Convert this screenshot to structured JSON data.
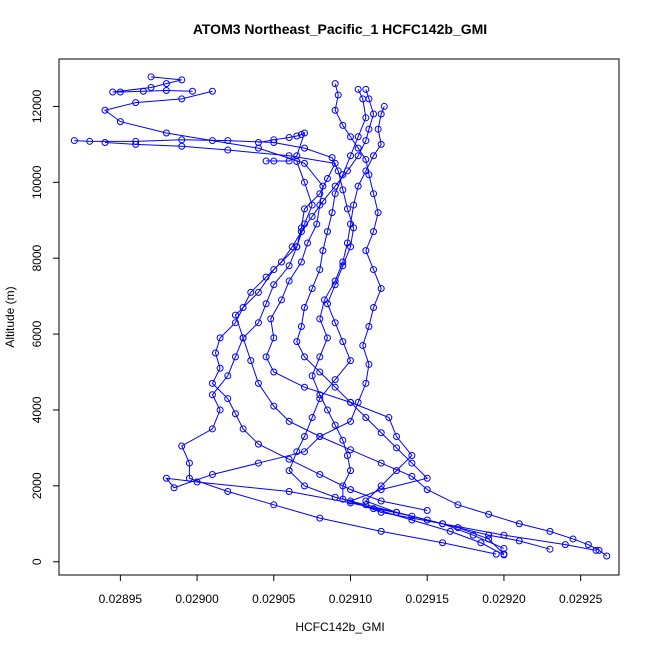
{
  "chart_data": {
    "type": "line",
    "title": "ATOM3 Northeast_Pacific_1 HCFC142b_GMI",
    "xlabel": "HCFC142b_GMI",
    "ylabel": "Altitude (m)",
    "xlim": [
      0.02891,
      0.029275
    ],
    "ylim": [
      -350,
      13250
    ],
    "xticks": [
      0.02895,
      0.029,
      0.02905,
      0.0291,
      0.02915,
      0.0292,
      0.02925
    ],
    "xtick_labels": [
      "0.02895",
      "0.02900",
      "0.02905",
      "0.02910",
      "0.02915",
      "0.02920",
      "0.02925"
    ],
    "yticks": [
      0,
      2000,
      4000,
      6000,
      8000,
      10000,
      12000
    ],
    "ytick_labels": [
      "0",
      "2000",
      "4000",
      "6000",
      "8000",
      "10000",
      "12000"
    ],
    "grid": false,
    "marker": "open-circle",
    "series_color": "#0000ff",
    "series": [
      {
        "points": [
          [
            0.029267,
            150
          ],
          [
            0.029262,
            300
          ],
          [
            0.029255,
            450
          ],
          [
            0.029245,
            600
          ],
          [
            0.02923,
            800
          ],
          [
            0.02921,
            1000
          ],
          [
            0.02919,
            1250
          ],
          [
            0.02917,
            1500
          ],
          [
            0.02915,
            1900
          ],
          [
            0.02914,
            2250
          ],
          [
            0.02912,
            2600
          ],
          [
            0.0291,
            2950
          ],
          [
            0.02908,
            3300
          ],
          [
            0.02906,
            3700
          ],
          [
            0.02905,
            4100
          ],
          [
            0.02904,
            4700
          ],
          [
            0.029035,
            5300
          ],
          [
            0.02903,
            5900
          ],
          [
            0.029025,
            6500
          ],
          [
            0.02904,
            7100
          ],
          [
            0.02905,
            7700
          ],
          [
            0.029065,
            8300
          ],
          [
            0.02907,
            8900
          ],
          [
            0.029075,
            9400
          ],
          [
            0.02907,
            10000
          ],
          [
            0.029065,
            10550
          ]
        ]
      },
      {
        "points": [
          [
            0.02923,
            330
          ],
          [
            0.02921,
            550
          ],
          [
            0.02919,
            700
          ],
          [
            0.02917,
            900
          ],
          [
            0.02915,
            1100
          ],
          [
            0.02913,
            1300
          ],
          [
            0.02911,
            1500
          ],
          [
            0.02909,
            1700
          ],
          [
            0.02907,
            2000
          ],
          [
            0.02906,
            2400
          ],
          [
            0.029065,
            2900
          ],
          [
            0.02907,
            3300
          ],
          [
            0.029075,
            3800
          ],
          [
            0.02908,
            4300
          ],
          [
            0.02909,
            4800
          ],
          [
            0.0291,
            5300
          ],
          [
            0.029095,
            5800
          ],
          [
            0.02909,
            6300
          ],
          [
            0.029085,
            6800
          ],
          [
            0.02909,
            7300
          ],
          [
            0.029095,
            7800
          ],
          [
            0.0291,
            8300
          ],
          [
            0.029102,
            8800
          ],
          [
            0.029098,
            9300
          ],
          [
            0.029095,
            9800
          ],
          [
            0.029092,
            10300
          ],
          [
            0.029088,
            10650
          ],
          [
            0.02907,
            10900
          ],
          [
            0.02905,
            11050
          ],
          [
            0.02902,
            11100
          ],
          [
            0.02899,
            11120
          ],
          [
            0.02896,
            11080
          ],
          [
            0.02893,
            11080
          ],
          [
            0.02892,
            11100
          ]
        ]
      },
      {
        "points": [
          [
            0.0292,
            200
          ],
          [
            0.02919,
            600
          ],
          [
            0.02917,
            900
          ],
          [
            0.02914,
            1200
          ],
          [
            0.0291,
            1550
          ],
          [
            0.02906,
            1850
          ],
          [
            0.029,
            2100
          ],
          [
            0.02898,
            2200
          ],
          [
            0.028985,
            1950
          ],
          [
            0.02901,
            2300
          ],
          [
            0.02904,
            2600
          ],
          [
            0.02907,
            2900
          ],
          [
            0.02908,
            3300
          ],
          [
            0.0291,
            3700
          ],
          [
            0.029105,
            4200
          ],
          [
            0.02911,
            4700
          ],
          [
            0.029112,
            5200
          ],
          [
            0.029108,
            5700
          ],
          [
            0.029112,
            6200
          ],
          [
            0.029115,
            6700
          ],
          [
            0.02912,
            7200
          ],
          [
            0.029115,
            7700
          ],
          [
            0.02911,
            8200
          ],
          [
            0.029115,
            8700
          ],
          [
            0.029118,
            9200
          ],
          [
            0.029115,
            9700
          ],
          [
            0.029112,
            10200
          ],
          [
            0.02911,
            10600
          ],
          [
            0.029105,
            10900
          ],
          [
            0.0291,
            11200
          ],
          [
            0.029095,
            11500
          ],
          [
            0.02909,
            11900
          ],
          [
            0.029092,
            12300
          ],
          [
            0.02909,
            12600
          ]
        ]
      },
      {
        "points": [
          [
            0.0292,
            180
          ],
          [
            0.029185,
            500
          ],
          [
            0.029165,
            800
          ],
          [
            0.02914,
            1100
          ],
          [
            0.029115,
            1400
          ],
          [
            0.029095,
            1650
          ],
          [
            0.029095,
            2000
          ],
          [
            0.0291,
            2400
          ],
          [
            0.029098,
            2800
          ],
          [
            0.029095,
            3200
          ],
          [
            0.02909,
            3600
          ],
          [
            0.029085,
            4000
          ],
          [
            0.02908,
            4400
          ],
          [
            0.029075,
            4900
          ],
          [
            0.02908,
            5400
          ],
          [
            0.029085,
            5900
          ],
          [
            0.02908,
            6400
          ],
          [
            0.029083,
            6900
          ],
          [
            0.02909,
            7400
          ],
          [
            0.029095,
            7900
          ],
          [
            0.029098,
            8400
          ],
          [
            0.0291,
            8900
          ],
          [
            0.029102,
            9400
          ],
          [
            0.029105,
            9900
          ],
          [
            0.02911,
            10300
          ],
          [
            0.029115,
            10700
          ],
          [
            0.02912,
            11000
          ],
          [
            0.029118,
            11400
          ],
          [
            0.02912,
            11800
          ],
          [
            0.029122,
            12000
          ]
        ]
      },
      {
        "points": [
          [
            0.029195,
            200
          ],
          [
            0.02916,
            500
          ],
          [
            0.02912,
            800
          ],
          [
            0.02908,
            1150
          ],
          [
            0.02905,
            1500
          ],
          [
            0.02902,
            1850
          ],
          [
            0.028995,
            2200
          ],
          [
            0.028995,
            2600
          ],
          [
            0.02899,
            3050
          ],
          [
            0.02901,
            3500
          ],
          [
            0.029015,
            4000
          ],
          [
            0.02901,
            4400
          ],
          [
            0.02902,
            4900
          ],
          [
            0.029025,
            5400
          ],
          [
            0.02903,
            5900
          ],
          [
            0.02904,
            6300
          ],
          [
            0.029045,
            6800
          ],
          [
            0.02905,
            7300
          ],
          [
            0.02906,
            7800
          ],
          [
            0.029065,
            8300
          ],
          [
            0.029068,
            8800
          ],
          [
            0.02907,
            9300
          ],
          [
            0.02908,
            9700
          ],
          [
            0.029085,
            10100
          ],
          [
            0.02909,
            10500
          ],
          [
            0.02906,
            10700
          ],
          [
            0.02902,
            10850
          ],
          [
            0.02899,
            10950
          ],
          [
            0.02896,
            11000
          ],
          [
            0.02894,
            11050
          ]
        ]
      },
      {
        "points": [
          [
            0.02926,
            300
          ],
          [
            0.02924,
            450
          ],
          [
            0.0292,
            700
          ],
          [
            0.02916,
            1000
          ],
          [
            0.02912,
            1300
          ],
          [
            0.0291,
            1600
          ],
          [
            0.02912,
            1900
          ],
          [
            0.02915,
            2200
          ],
          [
            0.02914,
            2600
          ],
          [
            0.02913,
            3000
          ],
          [
            0.02912,
            3400
          ],
          [
            0.02911,
            3800
          ],
          [
            0.0291,
            4200
          ],
          [
            0.02909,
            4600
          ],
          [
            0.02908,
            5000
          ],
          [
            0.02907,
            5400
          ],
          [
            0.029065,
            5800
          ],
          [
            0.029068,
            6200
          ],
          [
            0.02907,
            6700
          ],
          [
            0.029075,
            7200
          ],
          [
            0.02908,
            7700
          ],
          [
            0.029082,
            8200
          ],
          [
            0.029085,
            8700
          ],
          [
            0.029088,
            9200
          ],
          [
            0.02909,
            9700
          ],
          [
            0.029095,
            10200
          ],
          [
            0.0291,
            10700
          ],
          [
            0.029105,
            11200
          ],
          [
            0.02911,
            11700
          ],
          [
            0.029108,
            12200
          ],
          [
            0.029105,
            12450
          ]
        ]
      },
      {
        "points": [
          [
            0.0292,
            350
          ],
          [
            0.02918,
            700
          ],
          [
            0.02916,
            1000
          ],
          [
            0.02913,
            1300
          ],
          [
            0.02911,
            1600
          ],
          [
            0.02912,
            2000
          ],
          [
            0.02913,
            2400
          ],
          [
            0.02914,
            2800
          ],
          [
            0.02913,
            3300
          ],
          [
            0.029125,
            3800
          ],
          [
            0.0291,
            4200
          ],
          [
            0.02907,
            4600
          ],
          [
            0.02905,
            5000
          ],
          [
            0.029045,
            5400
          ],
          [
            0.02905,
            5900
          ],
          [
            0.029048,
            6400
          ],
          [
            0.029055,
            6900
          ],
          [
            0.02906,
            7400
          ],
          [
            0.029068,
            7900
          ],
          [
            0.029072,
            8400
          ],
          [
            0.029078,
            8900
          ],
          [
            0.02908,
            9400
          ],
          [
            0.029082,
            9900
          ],
          [
            0.02907,
            10500
          ],
          [
            0.02904,
            10900
          ],
          [
            0.02901,
            11100
          ],
          [
            0.02898,
            11300
          ],
          [
            0.02895,
            11600
          ],
          [
            0.02894,
            11900
          ],
          [
            0.02896,
            12100
          ],
          [
            0.02899,
            12200
          ],
          [
            0.02901,
            12400
          ]
        ]
      },
      {
        "points": [
          [
            0.02915,
            1350
          ],
          [
            0.02912,
            1600
          ],
          [
            0.0291,
            1900
          ],
          [
            0.02908,
            2300
          ],
          [
            0.02906,
            2700
          ],
          [
            0.02904,
            3100
          ],
          [
            0.02903,
            3500
          ],
          [
            0.029025,
            3900
          ],
          [
            0.02902,
            4300
          ],
          [
            0.02901,
            4700
          ],
          [
            0.029015,
            5100
          ],
          [
            0.029012,
            5500
          ],
          [
            0.029015,
            5900
          ],
          [
            0.029025,
            6300
          ],
          [
            0.02903,
            6700
          ],
          [
            0.029035,
            7100
          ],
          [
            0.029045,
            7500
          ],
          [
            0.029055,
            7900
          ],
          [
            0.029062,
            8300
          ],
          [
            0.029068,
            8700
          ],
          [
            0.029075,
            9100
          ],
          [
            0.029082,
            9500
          ],
          [
            0.02909,
            9900
          ],
          [
            0.029098,
            10300
          ],
          [
            0.029105,
            10700
          ],
          [
            0.02911,
            11100
          ],
          [
            0.029112,
            11400
          ],
          [
            0.029115,
            11800
          ],
          [
            0.029112,
            12200
          ],
          [
            0.02911,
            12450
          ]
        ]
      },
      {
        "points": [
          [
            0.028997,
            12400
          ],
          [
            0.02898,
            12420
          ],
          [
            0.028965,
            12400
          ],
          [
            0.02895,
            12380
          ],
          [
            0.028945,
            12380
          ],
          [
            0.02897,
            12500
          ],
          [
            0.02898,
            12600
          ],
          [
            0.02899,
            12700
          ],
          [
            0.02897,
            12780
          ]
        ]
      },
      {
        "points": [
          [
            0.02904,
            11050
          ],
          [
            0.02905,
            11120
          ],
          [
            0.02906,
            11180
          ],
          [
            0.029065,
            11220
          ],
          [
            0.029068,
            11260
          ],
          [
            0.02907,
            11300
          ],
          [
            0.029065,
            10700
          ],
          [
            0.02906,
            10560
          ],
          [
            0.02905,
            10560
          ],
          [
            0.029045,
            10560
          ]
        ]
      }
    ]
  }
}
